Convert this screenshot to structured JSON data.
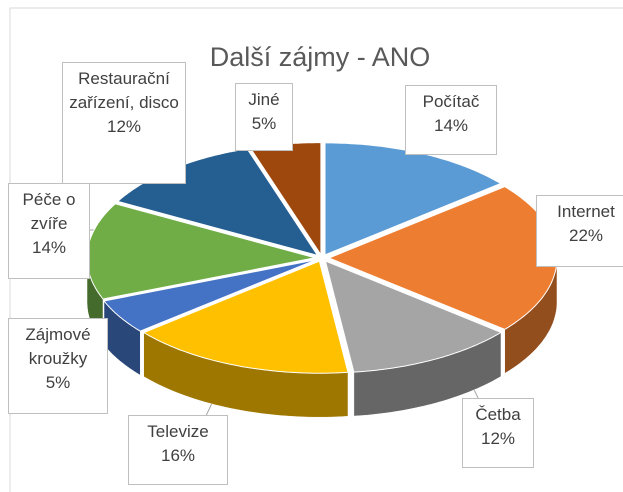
{
  "chart_data": {
    "type": "pie3d",
    "title": "Další zájmy - ANO",
    "categories": [
      "Počítač",
      "Internet",
      "Četba",
      "Televize",
      "Zájmové kroužky",
      "Péče o zvíře",
      "Restaurační zařízení, disco",
      "Jiné"
    ],
    "values": [
      14,
      22,
      12,
      16,
      5,
      14,
      12,
      5
    ],
    "value_labels": [
      "14%",
      "22%",
      "12%",
      "16%",
      "5%",
      "14%",
      "12%",
      "5%"
    ],
    "colors": [
      "#5b9bd5",
      "#ed7d31",
      "#a5a5a5",
      "#ffc000",
      "#4472c4",
      "#70ad47",
      "#255e91",
      "#9e480e"
    ]
  }
}
